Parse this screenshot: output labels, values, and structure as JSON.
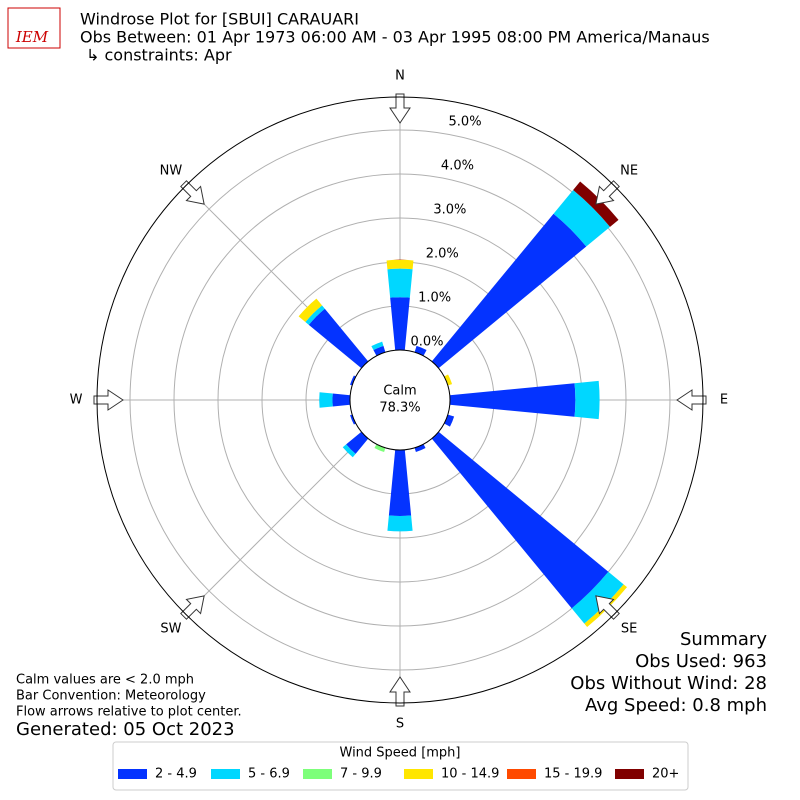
{
  "chart_data": {
    "type": "windrose",
    "logo": "IEM",
    "title": "Windrose Plot for [SBUI] CARAUARI",
    "subtitle": "Obs Between: 01 Apr 1973 06:00 AM - 03 Apr 1995 08:00 PM America/Manaus",
    "constraints": "↳ constraints: Apr",
    "categories": [
      "N",
      null,
      "NE",
      null,
      "E",
      null,
      "SE",
      null,
      "S",
      null,
      "SW",
      null,
      "W",
      null,
      "NW",
      null
    ],
    "series": [
      {
        "name": "2 - 4.9",
        "color": "#0433ff",
        "values": [
          1.2,
          0.15,
          4.35,
          0,
          2.85,
          0.15,
          5.0,
          0.1,
          1.5,
          0,
          0.45,
          0.05,
          0.4,
          0.05,
          1.55,
          0.15
        ]
      },
      {
        "name": "5 - 6.9",
        "color": "#00d7ff",
        "values": [
          0.65,
          0,
          0.7,
          0,
          0.55,
          0,
          0.45,
          0,
          0.35,
          0,
          0.1,
          0,
          0.3,
          0,
          0.1,
          0.1
        ]
      },
      {
        "name": "7 - 9.9",
        "color": "#7dff7a",
        "values": [
          0,
          0,
          0,
          0,
          0,
          0,
          0,
          0,
          0,
          0.1,
          0,
          0,
          0,
          0,
          0,
          0
        ]
      },
      {
        "name": "10 - 14.9",
        "color": "#ffe600",
        "values": [
          0.2,
          0,
          0,
          0.1,
          0,
          0,
          0.1,
          0,
          0,
          0,
          0,
          0,
          0,
          0,
          0.2,
          0
        ]
      },
      {
        "name": "15 - 19.9",
        "color": "#ff4a00",
        "values": [
          0,
          0,
          0,
          0,
          0,
          0,
          0,
          0,
          0,
          0,
          0,
          0,
          0,
          0,
          0,
          0
        ]
      },
      {
        "name": "20+",
        "color": "#800000",
        "values": [
          0,
          0,
          0.25,
          0,
          0,
          0,
          0,
          0,
          0,
          0,
          0,
          0,
          0,
          0,
          0,
          0
        ]
      }
    ],
    "rlim": [
      0,
      5.75
    ],
    "rticks": [
      {
        "value": 0,
        "label": "0.0%"
      },
      {
        "value": 1,
        "label": "1.0%"
      },
      {
        "value": 2,
        "label": "2.0%"
      },
      {
        "value": 3,
        "label": "3.0%"
      },
      {
        "value": 4,
        "label": "4.0%"
      },
      {
        "value": 5,
        "label": "5.0%"
      }
    ],
    "grid": true,
    "calm_label": "Calm",
    "calm_value": "78.3%",
    "legend_title": "Wind Speed [mph]",
    "summary": [
      "Summary",
      "Obs Used: 963",
      "Obs Without Wind: 28",
      "Avg Speed: 0.8 mph"
    ],
    "notes": [
      "Calm values are < 2.0 mph",
      "Bar Convention: Meteorology",
      "Flow arrows relative to plot center."
    ],
    "generated": "Generated: 05 Oct 2023"
  }
}
